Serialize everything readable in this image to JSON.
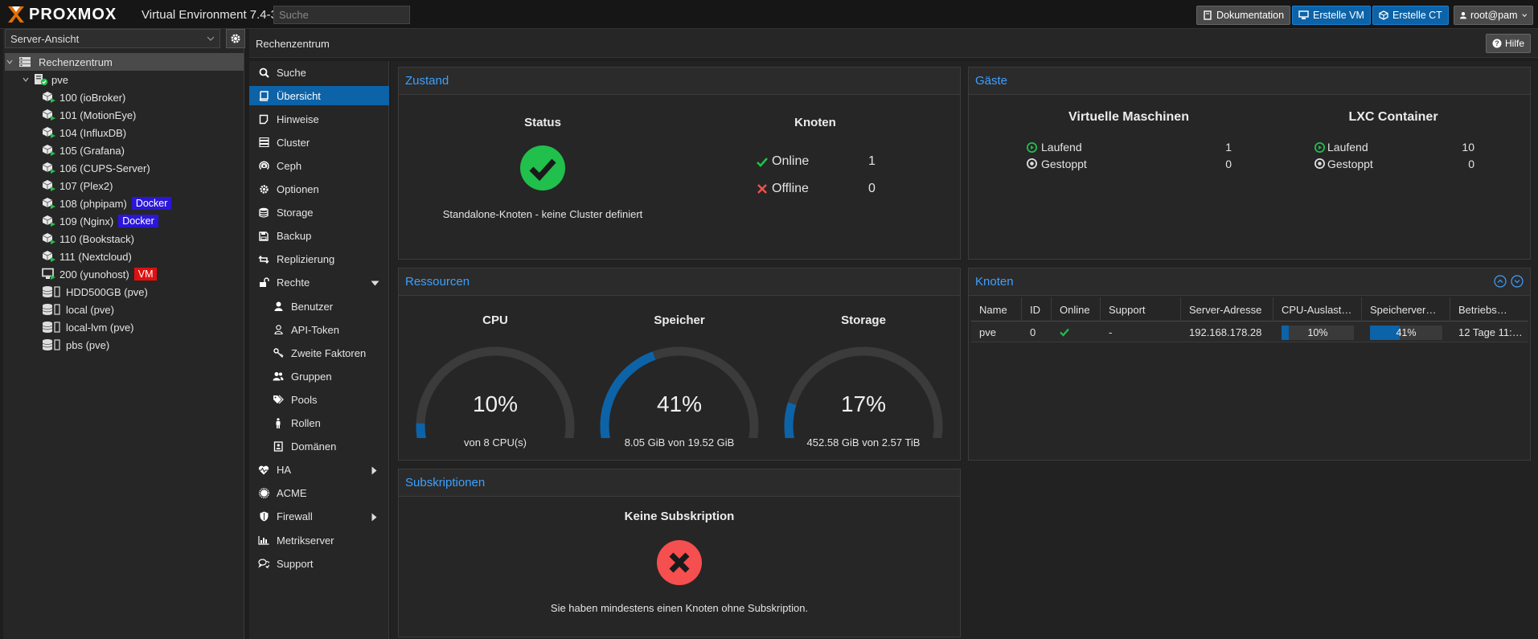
{
  "topbar": {
    "logo_text": "PROXMOX",
    "version": "Virtual Environment 7.4-3",
    "search_placeholder": "Suche",
    "doc_label": "Dokumentation",
    "create_vm_label": "Erstelle VM",
    "create_ct_label": "Erstelle CT",
    "user_label": "root@pam"
  },
  "left": {
    "view": "Server-Ansicht",
    "root": "Rechenzentrum",
    "node": "pve",
    "items": [
      {
        "label": "100 (ioBroker)",
        "type": "ct"
      },
      {
        "label": "101 (MotionEye)",
        "type": "ct"
      },
      {
        "label": "104 (InfluxDB)",
        "type": "ct"
      },
      {
        "label": "105 (Grafana)",
        "type": "ct"
      },
      {
        "label": "106 (CUPS-Server)",
        "type": "ct"
      },
      {
        "label": "107 (Plex2)",
        "type": "ct"
      },
      {
        "label": "108 (phpipam)",
        "type": "ct",
        "tag": "Docker"
      },
      {
        "label": "109 (Nginx)",
        "type": "ct",
        "tag": "Docker"
      },
      {
        "label": "110 (Bookstack)",
        "type": "ct"
      },
      {
        "label": "111 (Nextcloud)",
        "type": "ct"
      },
      {
        "label": "200 (yunohost)",
        "type": "vm",
        "tag": "VM"
      },
      {
        "label": "HDD500GB (pve)",
        "type": "storage"
      },
      {
        "label": "local (pve)",
        "type": "storage"
      },
      {
        "label": "local-lvm (pve)",
        "type": "storage"
      },
      {
        "label": "pbs (pve)",
        "type": "storage"
      }
    ],
    "colors": {
      "docker_tag": "#2b16d9",
      "vm_tag": "#e01010"
    }
  },
  "content": {
    "title": "Rechenzentrum",
    "help_label": "Hilfe"
  },
  "menu": {
    "items": [
      {
        "label": "Suche",
        "icon": "search-icon"
      },
      {
        "label": "Übersicht",
        "icon": "book-icon",
        "selected": true
      },
      {
        "label": "Hinweise",
        "icon": "notes-icon"
      },
      {
        "label": "Cluster",
        "icon": "server-icon"
      },
      {
        "label": "Ceph",
        "icon": "ceph-icon"
      },
      {
        "label": "Optionen",
        "icon": "gear-icon"
      },
      {
        "label": "Storage",
        "icon": "database-icon"
      },
      {
        "label": "Backup",
        "icon": "floppy-icon"
      },
      {
        "label": "Replizierung",
        "icon": "retweet-icon"
      },
      {
        "label": "Rechte",
        "icon": "unlock-icon",
        "expander": "down"
      },
      {
        "label": "Benutzer",
        "icon": "user-icon",
        "sub": true
      },
      {
        "label": "API-Token",
        "icon": "user-outline-icon",
        "sub": true
      },
      {
        "label": "Zweite Faktoren",
        "icon": "key-icon",
        "sub": true
      },
      {
        "label": "Gruppen",
        "icon": "users-icon",
        "sub": true
      },
      {
        "label": "Pools",
        "icon": "tags-icon",
        "sub": true
      },
      {
        "label": "Rollen",
        "icon": "male-icon",
        "sub": true
      },
      {
        "label": "Domänen",
        "icon": "address-book-icon",
        "sub": true
      },
      {
        "label": "HA",
        "icon": "heartbeat-icon",
        "expander": "right"
      },
      {
        "label": "ACME",
        "icon": "certificate-icon"
      },
      {
        "label": "Firewall",
        "icon": "shield-icon",
        "expander": "right"
      },
      {
        "label": "Metrikserver",
        "icon": "bar-chart-icon"
      },
      {
        "label": "Support",
        "icon": "comments-icon"
      }
    ]
  },
  "zustand": {
    "title": "Zustand",
    "status_label": "Status",
    "status_text": "Standalone-Knoten - keine Cluster definiert",
    "knoten_label": "Knoten",
    "online_label": "Online",
    "online_count": "1",
    "offline_label": "Offline",
    "offline_count": "0"
  },
  "gaeste": {
    "title": "Gäste",
    "vm_title": "Virtuelle Maschinen",
    "ct_title": "LXC Container",
    "running_label": "Laufend",
    "stopped_label": "Gestoppt",
    "vm_running": "1",
    "vm_stopped": "0",
    "ct_running": "10",
    "ct_stopped": "0"
  },
  "ressourcen": {
    "title": "Ressourcen",
    "gauges": [
      {
        "label": "CPU",
        "value": "10%",
        "fraction": 0.1,
        "sub": "von 8 CPU(s)"
      },
      {
        "label": "Speicher",
        "value": "41%",
        "fraction": 0.41,
        "sub": "8.05 GiB von 19.52 GiB"
      },
      {
        "label": "Storage",
        "value": "17%",
        "fraction": 0.17,
        "sub": "452.58 GiB von 2.57 TiB"
      }
    ]
  },
  "subskriptionen": {
    "title": "Subskriptionen",
    "heading": "Keine Subskription",
    "text": "Sie haben mindestens einen Knoten ohne Subskription."
  },
  "knoten_table": {
    "title": "Knoten",
    "headers": [
      "Name",
      "ID",
      "Online",
      "Support",
      "Server-Adresse",
      "CPU-Auslast…",
      "Speicherver…",
      "Betriebs…"
    ],
    "row": {
      "name": "pve",
      "id": "0",
      "support": "-",
      "address": "192.168.178.28",
      "cpu_label": "10%",
      "cpu_fraction": 0.1,
      "mem_label": "41%",
      "mem_fraction": 0.41,
      "uptime": "12 Tage 11:…"
    }
  },
  "colors": {
    "accent": "#0d63a8",
    "title_blue": "#3da0ff",
    "ok_green": "#21bf4b",
    "error_red": "#f54f4f"
  }
}
